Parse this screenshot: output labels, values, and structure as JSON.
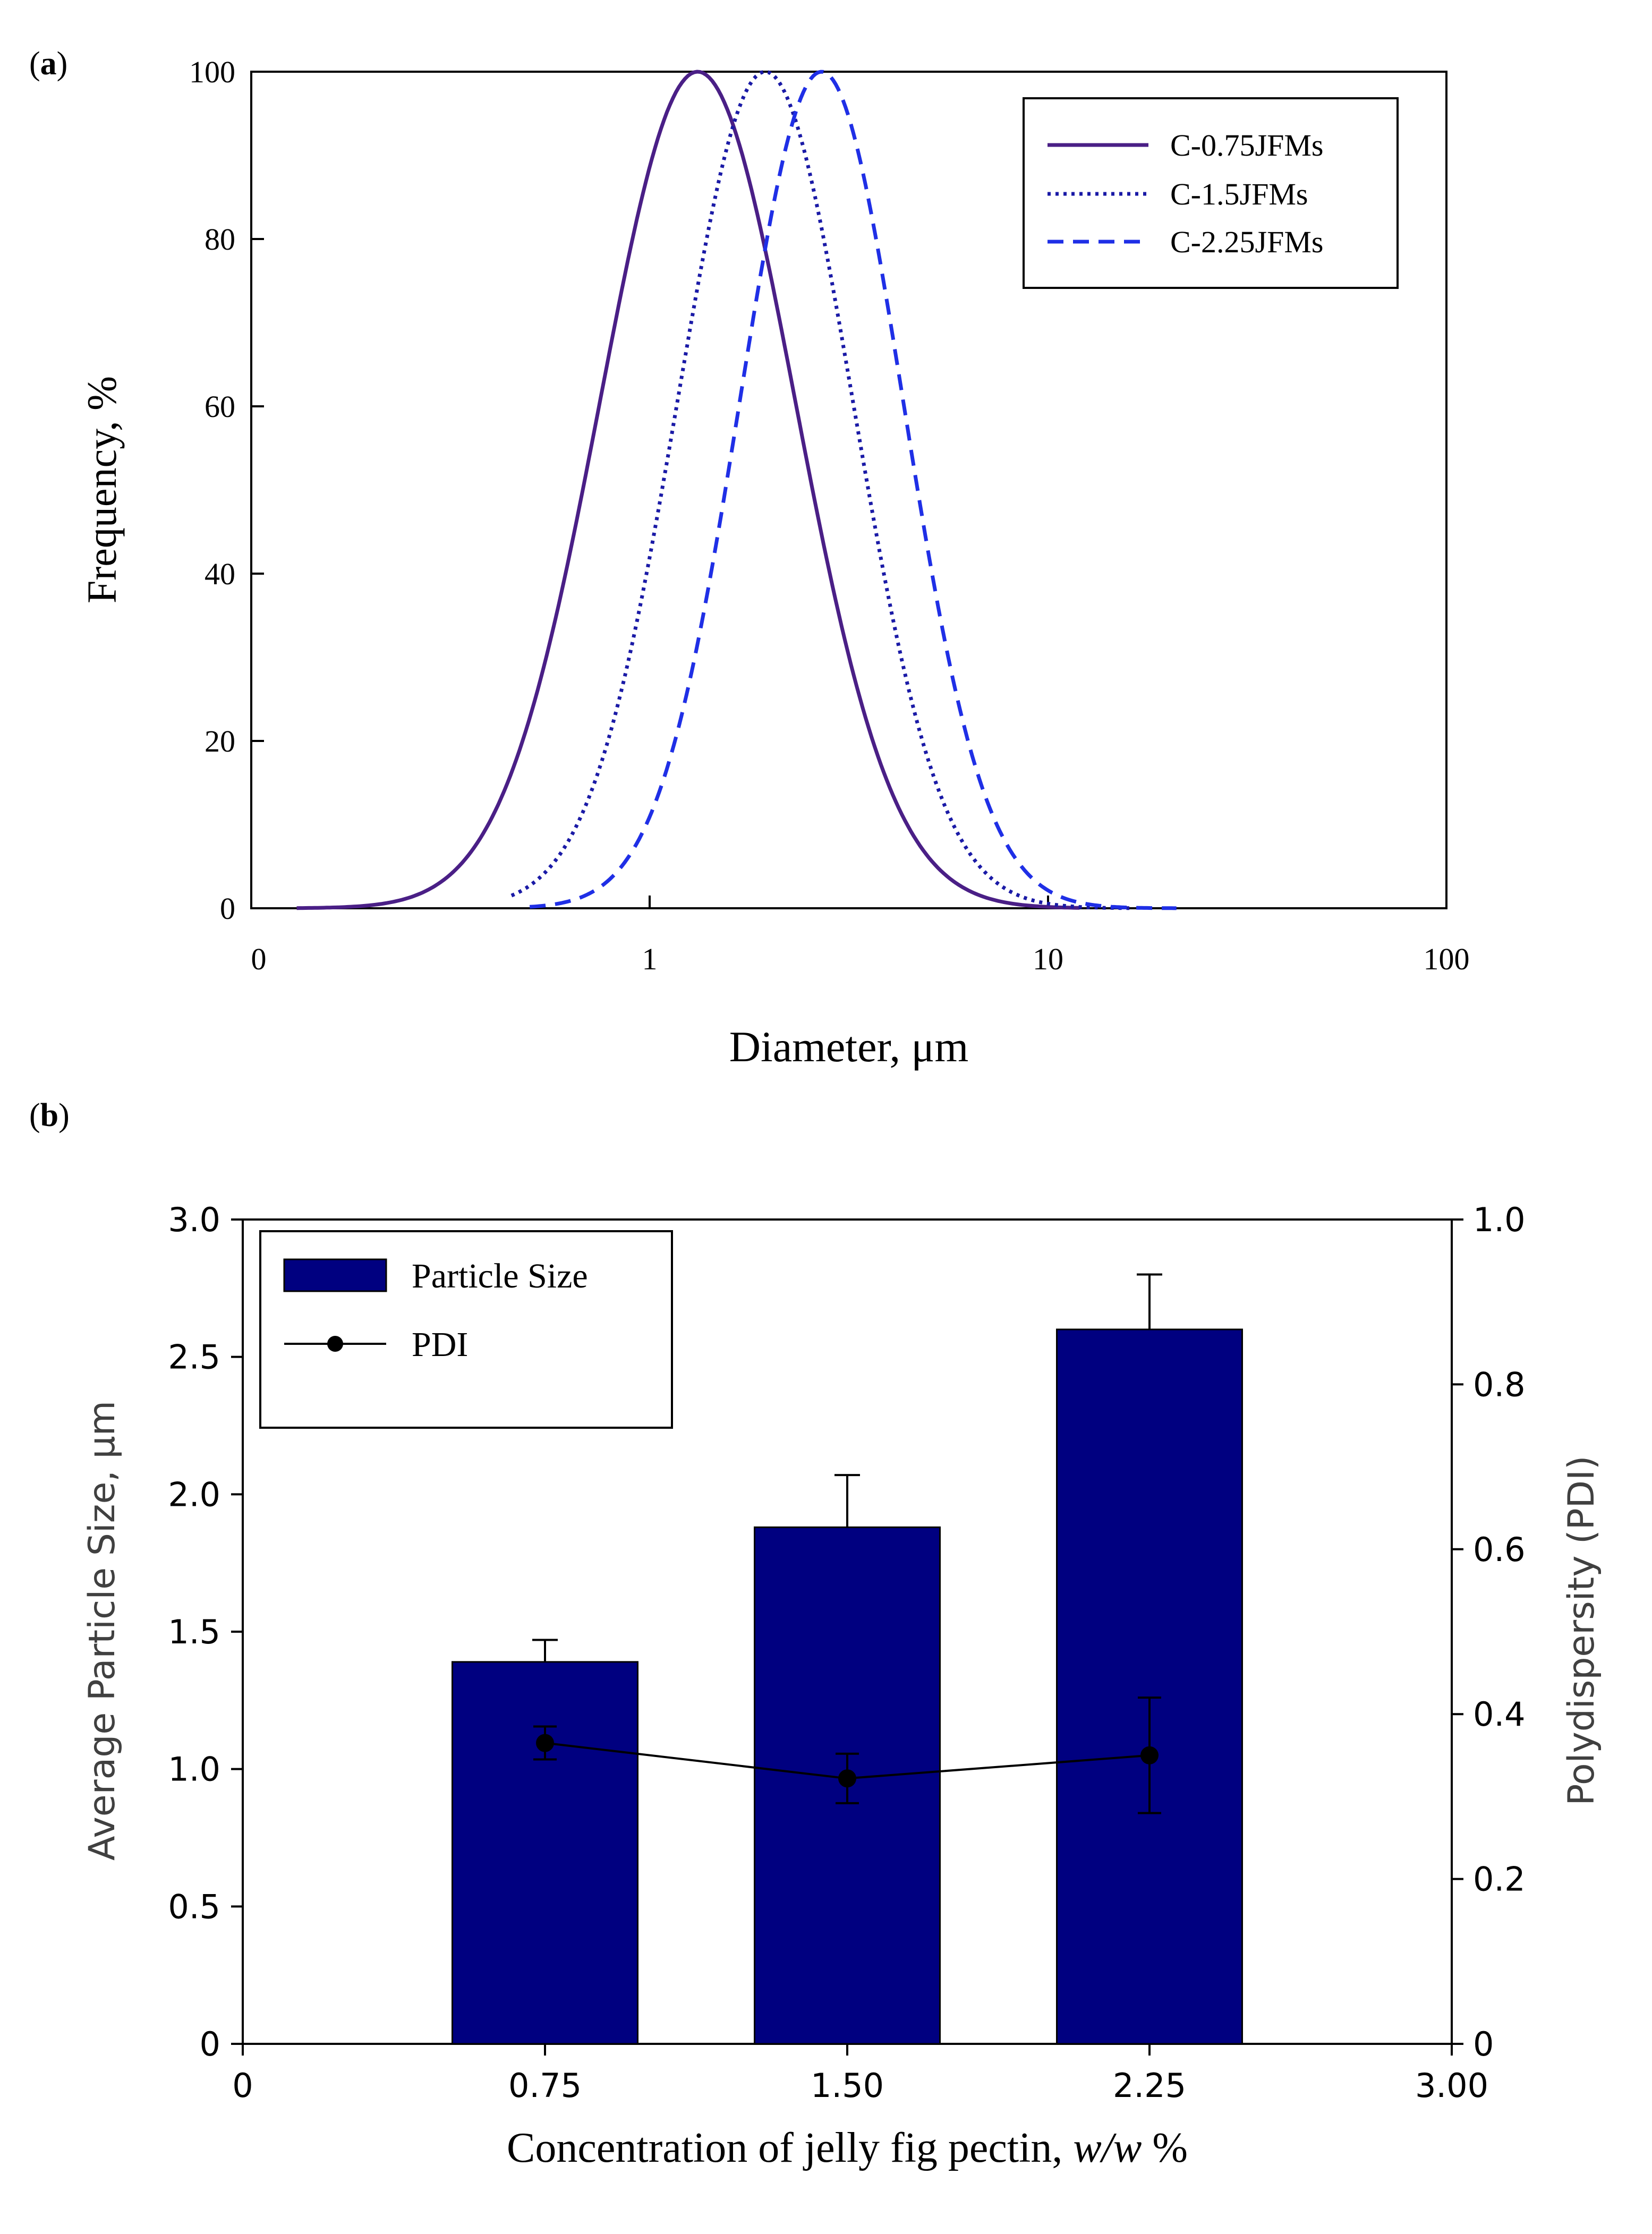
{
  "chart_data": [
    {
      "type": "line",
      "panel_label": "(a)",
      "panel_letter": "a",
      "xlabel": "Diameter, μm",
      "ylabel": "Frequency, %",
      "xscale": "log",
      "xlim_decades": [
        -1,
        2
      ],
      "ylim": [
        0,
        100
      ],
      "x_ticks": [
        "0",
        "1",
        "10",
        "100"
      ],
      "y_ticks": [
        "0",
        "20",
        "40",
        "60",
        "80",
        "100"
      ],
      "legend_position": "top-right",
      "series": [
        {
          "name": "C-0.75JFMs",
          "style": "solid",
          "color": "#4a1f86",
          "peak_diameter": 1.32,
          "sigma_log10": 0.245,
          "x_range": [
            0.13,
            12
          ],
          "peak_value": 100
        },
        {
          "name": "C-1.5JFMs",
          "style": "dotted",
          "color": "#1a1aa6",
          "peak_diameter": 1.95,
          "sigma_log10": 0.22,
          "x_range": [
            0.45,
            16
          ],
          "peak_value": 100
        },
        {
          "name": "C-2.25JFMs",
          "style": "dashed",
          "color": "#1f2fe6",
          "peak_diameter": 2.7,
          "sigma_log10": 0.205,
          "x_range": [
            0.5,
            21
          ],
          "peak_value": 100
        }
      ]
    },
    {
      "type": "bar",
      "panel_label": "(b)",
      "panel_letter": "b",
      "xlabel": "Concentration of jelly fig pectin, w/w %",
      "xlabel_main": "Concentration of jelly fig pectin, ",
      "xlabel_unit": "w/w",
      "xlabel_pct": " %",
      "ylabel": "Average Particle Size, μm",
      "y2label": "Polydispersity (PDI)",
      "xlim": [
        0,
        3.0
      ],
      "ylim": [
        0,
        3.0
      ],
      "y2lim": [
        0,
        1.0
      ],
      "x_ticks": [
        "0",
        "0.75",
        "1.50",
        "2.25",
        "3.00"
      ],
      "y_ticks": [
        "0",
        "0.5",
        "1.0",
        "1.5",
        "2.0",
        "2.5",
        "3.0"
      ],
      "y2_ticks": [
        "0",
        "0.2",
        "0.4",
        "0.6",
        "0.8",
        "1.0"
      ],
      "bar_color": "#000080",
      "legend_position": "top-left",
      "categories": [
        0.75,
        1.5,
        2.25
      ],
      "series": [
        {
          "name": "Particle Size",
          "axis": "left",
          "values": [
            1.39,
            1.88,
            2.6
          ],
          "error": [
            0.08,
            0.19,
            0.2
          ]
        },
        {
          "name": "PDI",
          "axis": "right",
          "values": [
            0.365,
            0.322,
            0.35
          ],
          "error": [
            0.02,
            0.03,
            0.07
          ]
        }
      ]
    }
  ]
}
